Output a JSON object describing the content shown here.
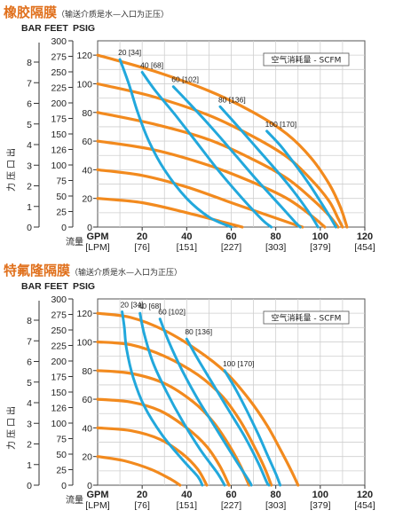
{
  "colors": {
    "flow_curves": "#f28a1e",
    "air_curves": "#22a8dc",
    "title": "#e0701c",
    "grid": "#cfcfcf"
  },
  "chart_data": [
    {
      "type": "line",
      "title": "橡胶隔膜",
      "subtitle": "（输送介质是水—入口为正压）",
      "legend": "空气消耗量 - SCFM",
      "y_headers": [
        "BAR",
        "FEET",
        "PSIG"
      ],
      "y_feet_ticks": [
        "300",
        "275",
        "250",
        "225",
        "200",
        "175",
        "150",
        "126",
        "100",
        "75",
        "50",
        "25",
        "0"
      ],
      "y_psig_ticks": [
        "120",
        "100",
        "80",
        "60",
        "40",
        "20",
        "0"
      ],
      "y_bar_ticks": [
        "8",
        "7",
        "6",
        "5",
        "4",
        "3",
        "2",
        "1",
        "0"
      ],
      "ylabel": "出口压力",
      "xlabel": "流量",
      "x_ticks": [
        {
          "gpm": "GPM",
          "lpm": "[LPM]"
        },
        {
          "gpm": "20",
          "lpm": "[76]"
        },
        {
          "gpm": "40",
          "lpm": "[151]"
        },
        {
          "gpm": "60",
          "lpm": "[227]"
        },
        {
          "gpm": "80",
          "lpm": "[303]"
        },
        {
          "gpm": "100",
          "lpm": "[379]"
        },
        {
          "gpm": "120",
          "lpm": "[454]"
        }
      ],
      "xlim": [
        0,
        120
      ],
      "ylim": [
        0,
        130
      ],
      "grid": true,
      "flow_curves": [
        {
          "points": [
            [
              0,
              120
            ],
            [
              25,
              109
            ],
            [
              50,
              95
            ],
            [
              70,
              80
            ],
            [
              85,
              65
            ],
            [
              96,
              48
            ],
            [
              104,
              30
            ],
            [
              109,
              14
            ],
            [
              112,
              0
            ]
          ]
        },
        {
          "points": [
            [
              0,
              100
            ],
            [
              25,
              91
            ],
            [
              50,
              78
            ],
            [
              70,
              63
            ],
            [
              85,
              49
            ],
            [
              96,
              33
            ],
            [
              104,
              18
            ],
            [
              108,
              6
            ],
            [
              110,
              0
            ]
          ]
        },
        {
          "points": [
            [
              0,
              80
            ],
            [
              25,
              72
            ],
            [
              50,
              61
            ],
            [
              70,
              47
            ],
            [
              85,
              34
            ],
            [
              96,
              20
            ],
            [
              104,
              8
            ],
            [
              108,
              0
            ]
          ]
        },
        {
          "points": [
            [
              0,
              60
            ],
            [
              25,
              54
            ],
            [
              50,
              43
            ],
            [
              70,
              31
            ],
            [
              85,
              20
            ],
            [
              96,
              8
            ],
            [
              102,
              0
            ]
          ]
        },
        {
          "points": [
            [
              0,
              40
            ],
            [
              20,
              36
            ],
            [
              40,
              28
            ],
            [
              60,
              17
            ],
            [
              75,
              9
            ],
            [
              88,
              2
            ],
            [
              92,
              0
            ]
          ]
        },
        {
          "points": [
            [
              0,
              20
            ],
            [
              20,
              17
            ],
            [
              40,
              10
            ],
            [
              55,
              4
            ],
            [
              65,
              0
            ]
          ]
        }
      ],
      "air_curves": [
        {
          "label": "20 [34]",
          "points": [
            [
              10,
              117
            ],
            [
              14,
              100
            ],
            [
              18,
              80
            ],
            [
              23,
              60
            ],
            [
              30,
              40
            ],
            [
              40,
              20
            ],
            [
              50,
              7
            ],
            [
              60,
              0
            ]
          ]
        },
        {
          "label": "40 [68]",
          "points": [
            [
              20,
              108
            ],
            [
              26,
              95
            ],
            [
              35,
              78
            ],
            [
              45,
              58
            ],
            [
              55,
              38
            ],
            [
              65,
              20
            ],
            [
              74,
              5
            ],
            [
              78,
              0
            ]
          ]
        },
        {
          "label": "60 [102]",
          "points": [
            [
              34,
              98
            ],
            [
              42,
              85
            ],
            [
              52,
              68
            ],
            [
              62,
              50
            ],
            [
              72,
              32
            ],
            [
              82,
              15
            ],
            [
              89,
              3
            ],
            [
              91,
              0
            ]
          ]
        },
        {
          "label": "80 [136]",
          "points": [
            [
              55,
              84
            ],
            [
              62,
              72
            ],
            [
              71,
              56
            ],
            [
              80,
              40
            ],
            [
              88,
              25
            ],
            [
              95,
              10
            ],
            [
              99,
              0
            ]
          ]
        },
        {
          "label": "100 [170]",
          "points": [
            [
              76,
              67
            ],
            [
              82,
              57
            ],
            [
              89,
              43
            ],
            [
              95,
              30
            ],
            [
              100,
              18
            ],
            [
              104,
              8
            ],
            [
              107,
              0
            ]
          ]
        }
      ]
    },
    {
      "type": "line",
      "title": "特氟隆隔膜",
      "subtitle": "（输送介质是水—入口为正压）",
      "legend": "空气消耗量 - SCFM",
      "y_headers": [
        "BAR",
        "FEET",
        "PSIG"
      ],
      "y_feet_ticks": [
        "300",
        "275",
        "250",
        "225",
        "200",
        "175",
        "150",
        "126",
        "100",
        "75",
        "50",
        "25",
        "0"
      ],
      "y_psig_ticks": [
        "120",
        "100",
        "80",
        "60",
        "40",
        "20",
        "0"
      ],
      "y_bar_ticks": [
        "8",
        "7",
        "6",
        "5",
        "4",
        "3",
        "2",
        "1",
        "0"
      ],
      "ylabel": "出口压力",
      "xlabel": "流量",
      "x_ticks": [
        {
          "gpm": "GPM",
          "lpm": "[LPM]"
        },
        {
          "gpm": "20",
          "lpm": "[76]"
        },
        {
          "gpm": "40",
          "lpm": "[151]"
        },
        {
          "gpm": "60",
          "lpm": "[227]"
        },
        {
          "gpm": "80",
          "lpm": "[303]"
        },
        {
          "gpm": "100",
          "lpm": "[379]"
        },
        {
          "gpm": "120",
          "lpm": "[454]"
        }
      ],
      "xlim": [
        0,
        120
      ],
      "ylim": [
        0,
        130
      ],
      "grid": true,
      "flow_curves": [
        {
          "points": [
            [
              0,
              120
            ],
            [
              15,
              117
            ],
            [
              30,
              108
            ],
            [
              45,
              94
            ],
            [
              58,
              78
            ],
            [
              68,
              60
            ],
            [
              76,
              42
            ],
            [
              82,
              25
            ],
            [
              87,
              10
            ],
            [
              90,
              0
            ]
          ]
        },
        {
          "points": [
            [
              0,
              100
            ],
            [
              15,
              98
            ],
            [
              30,
              90
            ],
            [
              45,
              77
            ],
            [
              56,
              62
            ],
            [
              64,
              45
            ],
            [
              70,
              28
            ],
            [
              75,
              12
            ],
            [
              78,
              0
            ]
          ]
        },
        {
          "points": [
            [
              0,
              80
            ],
            [
              15,
              78
            ],
            [
              30,
              71
            ],
            [
              43,
              58
            ],
            [
              52,
              44
            ],
            [
              59,
              28
            ],
            [
              64,
              14
            ],
            [
              68,
              0
            ]
          ]
        },
        {
          "points": [
            [
              0,
              60
            ],
            [
              15,
              58
            ],
            [
              28,
              52
            ],
            [
              40,
              40
            ],
            [
              49,
              27
            ],
            [
              55,
              13
            ],
            [
              59,
              0
            ]
          ]
        },
        {
          "points": [
            [
              0,
              40
            ],
            [
              15,
              38
            ],
            [
              28,
              32
            ],
            [
              38,
              22
            ],
            [
              45,
              11
            ],
            [
              49,
              0
            ]
          ]
        },
        {
          "points": [
            [
              0,
              20
            ],
            [
              12,
              17
            ],
            [
              24,
              11
            ],
            [
              33,
              4
            ],
            [
              37,
              0
            ]
          ]
        }
      ],
      "air_curves": [
        {
          "label": "20 [34]",
          "points": [
            [
              11,
              121
            ],
            [
              12,
              110
            ],
            [
              13,
              95
            ],
            [
              16,
              75
            ],
            [
              21,
              55
            ],
            [
              29,
              35
            ],
            [
              38,
              18
            ],
            [
              45,
              6
            ],
            [
              47,
              0
            ]
          ]
        },
        {
          "label": "40 [68]",
          "points": [
            [
              19,
              120
            ],
            [
              21,
              105
            ],
            [
              25,
              85
            ],
            [
              31,
              65
            ],
            [
              38,
              45
            ],
            [
              46,
              25
            ],
            [
              54,
              8
            ],
            [
              57,
              0
            ]
          ]
        },
        {
          "label": "60 [102]",
          "points": [
            [
              28,
              116
            ],
            [
              32,
              100
            ],
            [
              38,
              80
            ],
            [
              45,
              60
            ],
            [
              53,
              40
            ],
            [
              61,
              20
            ],
            [
              68,
              3
            ],
            [
              69,
              0
            ]
          ]
        },
        {
          "label": "80 [136]",
          "points": [
            [
              40,
              102
            ],
            [
              45,
              88
            ],
            [
              52,
              70
            ],
            [
              59,
              52
            ],
            [
              66,
              34
            ],
            [
              72,
              16
            ],
            [
              76,
              2
            ],
            [
              77,
              0
            ]
          ]
        },
        {
          "label": "100 [170]",
          "points": [
            [
              57,
              80
            ],
            [
              62,
              67
            ],
            [
              67,
              52
            ],
            [
              72,
              36
            ],
            [
              76,
              22
            ],
            [
              80,
              8
            ],
            [
              82,
              0
            ]
          ]
        }
      ]
    }
  ]
}
